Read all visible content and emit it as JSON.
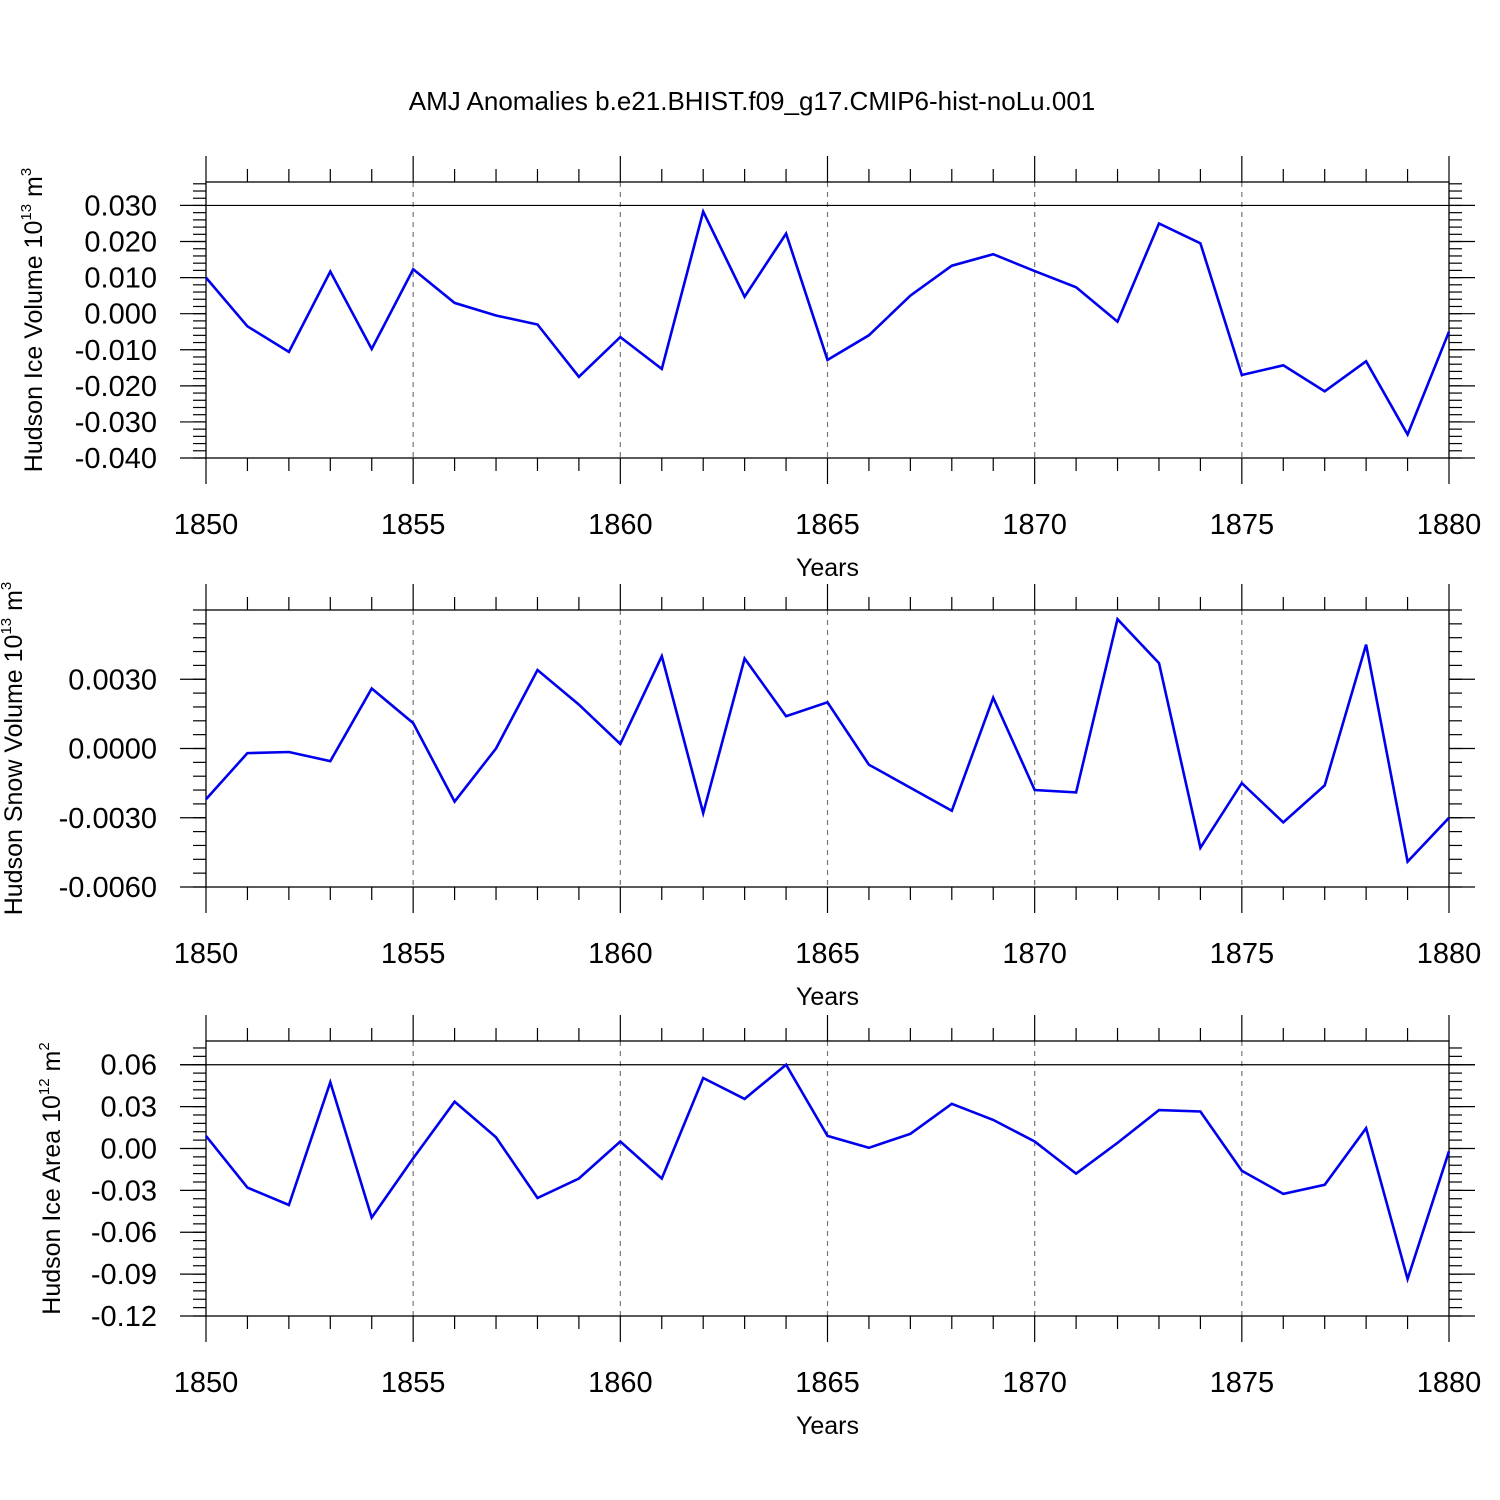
{
  "title": "AMJ Anomalies b.e21.BHIST.f09_g17.CMIP6-hist-noLu.001",
  "chart_data": [
    {
      "type": "line",
      "name": "ice-volume",
      "ylabel": "Hudson Ice Volume 10",
      "ylabel_exponent": "13",
      "ylabel_unit": "m",
      "ylabel_unit_exponent": "3",
      "xlabel": "Years",
      "xlim": [
        1850,
        1880
      ],
      "ylim": [
        -0.04,
        0.0365
      ],
      "x_ticks": [
        1850,
        1855,
        1860,
        1865,
        1870,
        1875,
        1880
      ],
      "x_tick_labels": [
        "1850",
        "1855",
        "1860",
        "1865",
        "1870",
        "1875",
        "1880"
      ],
      "y_ticks": [
        -0.04,
        -0.03,
        -0.02,
        -0.01,
        0.0,
        0.01,
        0.02,
        0.03
      ],
      "y_tick_labels": [
        "-0.040",
        "-0.030",
        "-0.020",
        "-0.010",
        "0.000",
        "0.010",
        "0.020",
        "0.030"
      ],
      "y_minor_step": 0.002,
      "ref_line": 0.03,
      "grid": "dashed vertical at major x ticks",
      "x": [
        1850,
        1851,
        1852,
        1853,
        1854,
        1855,
        1856,
        1857,
        1858,
        1859,
        1860,
        1861,
        1862,
        1863,
        1864,
        1865,
        1866,
        1867,
        1868,
        1869,
        1870,
        1871,
        1872,
        1873,
        1874,
        1875,
        1876,
        1877,
        1878,
        1879,
        1880
      ],
      "values": [
        0.01,
        -0.0035,
        -0.0106,
        0.0117,
        -0.0098,
        0.0123,
        0.003,
        -0.0005,
        -0.003,
        -0.0175,
        -0.0065,
        -0.0153,
        0.0283,
        0.0047,
        0.0222,
        -0.0128,
        -0.006,
        0.005,
        0.0133,
        0.0165,
        0.0118,
        0.0073,
        -0.0022,
        0.025,
        0.0195,
        -0.017,
        -0.0143,
        -0.0215,
        -0.0132,
        -0.0335,
        -0.005
      ],
      "color": "#0000ee"
    },
    {
      "type": "line",
      "name": "snow-volume",
      "ylabel": "Hudson Snow Volume 10",
      "ylabel_exponent": "13",
      "ylabel_unit": "m",
      "ylabel_unit_exponent": "3",
      "xlabel": "Years",
      "xlim": [
        1850,
        1880
      ],
      "ylim": [
        -0.006,
        0.006
      ],
      "x_ticks": [
        1850,
        1855,
        1860,
        1865,
        1870,
        1875,
        1880
      ],
      "x_tick_labels": [
        "1850",
        "1855",
        "1860",
        "1865",
        "1870",
        "1875",
        "1880"
      ],
      "y_ticks": [
        -0.006,
        -0.003,
        0.0,
        0.003
      ],
      "y_tick_labels": [
        "-0.0060",
        "-0.0030",
        "0.0000",
        "0.0030"
      ],
      "y_minor_step": 0.0006,
      "ref_line": null,
      "grid": "dashed vertical at major x ticks",
      "x": [
        1850,
        1851,
        1852,
        1853,
        1854,
        1855,
        1856,
        1857,
        1858,
        1859,
        1860,
        1861,
        1862,
        1863,
        1864,
        1865,
        1866,
        1867,
        1868,
        1869,
        1870,
        1871,
        1872,
        1873,
        1874,
        1875,
        1876,
        1877,
        1878,
        1879,
        1880
      ],
      "values": [
        -0.0022,
        -0.0002,
        -0.00015,
        -0.00055,
        0.0026,
        0.0011,
        -0.0023,
        0.0,
        0.0034,
        0.0019,
        0.0002,
        0.004,
        -0.0028,
        0.0039,
        0.0014,
        0.002,
        -0.0007,
        -0.0017,
        -0.0027,
        0.0022,
        -0.0018,
        -0.0019,
        0.0056,
        0.0037,
        -0.0043,
        -0.0015,
        -0.0032,
        -0.0016,
        0.0045,
        -0.0049,
        -0.003
      ],
      "color": "#0000ee"
    },
    {
      "type": "line",
      "name": "ice-area",
      "ylabel": "Hudson Ice Area 10",
      "ylabel_exponent": "12",
      "ylabel_unit": "m",
      "ylabel_unit_exponent": "2",
      "xlabel": "Years",
      "xlim": [
        1850,
        1880
      ],
      "ylim": [
        -0.12,
        0.077
      ],
      "x_ticks": [
        1850,
        1855,
        1860,
        1865,
        1870,
        1875,
        1880
      ],
      "x_tick_labels": [
        "1850",
        "1855",
        "1860",
        "1865",
        "1870",
        "1875",
        "1880"
      ],
      "y_ticks": [
        -0.12,
        -0.09,
        -0.06,
        -0.03,
        0.0,
        0.03,
        0.06
      ],
      "y_tick_labels": [
        "-0.12",
        "-0.09",
        "-0.06",
        "-0.03",
        "0.00",
        "0.03",
        "0.06"
      ],
      "y_minor_step": 0.006,
      "ref_line": 0.06,
      "grid": "dashed vertical at major x ticks",
      "x": [
        1850,
        1851,
        1852,
        1853,
        1854,
        1855,
        1856,
        1857,
        1858,
        1859,
        1860,
        1861,
        1862,
        1863,
        1864,
        1865,
        1866,
        1867,
        1868,
        1869,
        1870,
        1871,
        1872,
        1873,
        1874,
        1875,
        1876,
        1877,
        1878,
        1879,
        1880
      ],
      "values": [
        0.009,
        -0.028,
        -0.0405,
        0.0475,
        -0.0495,
        -0.007,
        0.0335,
        0.008,
        -0.0355,
        -0.0215,
        0.005,
        -0.0215,
        0.0505,
        0.0355,
        0.06,
        0.009,
        0.0005,
        0.0105,
        0.032,
        0.0205,
        0.005,
        -0.018,
        0.004,
        0.0275,
        0.0265,
        -0.016,
        -0.0325,
        -0.026,
        0.0145,
        -0.0935,
        -0.002
      ],
      "color": "#0000ee"
    }
  ]
}
